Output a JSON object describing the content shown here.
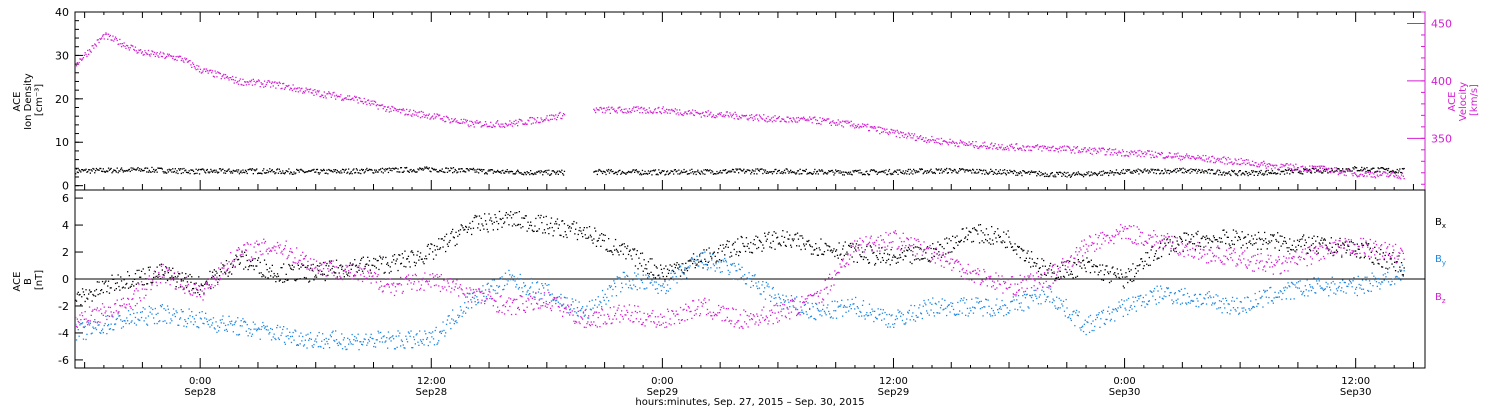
{
  "colors": {
    "black": "#000000",
    "magenta": "#d21fd2",
    "blue": "#1f87e0"
  },
  "x_axis": {
    "label": "hours:minutes, Sep. 27, 2015 – Sep. 30, 2015",
    "range_hours": [
      -6.5,
      63.6
    ],
    "ticks": [
      {
        "hour": 0,
        "time": "0:00",
        "date": "Sep28"
      },
      {
        "hour": 12,
        "time": "12:00",
        "date": "Sep28"
      },
      {
        "hour": 24,
        "time": "0:00",
        "date": "Sep29"
      },
      {
        "hour": 36,
        "time": "12:00",
        "date": "Sep29"
      },
      {
        "hour": 48,
        "time": "0:00",
        "date": "Sep30"
      },
      {
        "hour": 60,
        "time": "12:00",
        "date": "Sep30"
      }
    ]
  },
  "chart_data": [
    {
      "type": "scatter",
      "title": "",
      "ylabel_lines": [
        "ACE",
        "Ion Density",
        "[cm⁻³]"
      ],
      "ylim": [
        -1,
        40
      ],
      "yticks": [
        0,
        10,
        20,
        30,
        40
      ],
      "y2label_lines": [
        "ACE",
        "Velocity",
        "[km/s]"
      ],
      "y2lim": [
        305,
        460
      ],
      "y2ticks": [
        350,
        400,
        450
      ],
      "series": [
        {
          "color_key": "black",
          "axis": "left",
          "x": [
            -6.5,
            -3,
            0,
            3,
            6,
            9,
            12,
            15,
            18,
            21,
            24,
            27,
            30,
            33,
            36,
            39,
            42,
            45,
            48,
            51,
            54,
            57,
            60,
            62.5
          ],
          "values": [
            3.5,
            3.8,
            3.4,
            3.5,
            3.3,
            3.6,
            3.9,
            3.4,
            3.1,
            3.3,
            3.2,
            3.4,
            3.5,
            3.2,
            3.3,
            3.6,
            3.2,
            2.6,
            3.3,
            3.6,
            3.0,
            3.4,
            4.0,
            3.5
          ]
        },
        {
          "color_key": "magenta",
          "axis": "right",
          "x": [
            -6.5,
            -5,
            -3,
            -1,
            0,
            2,
            4,
            6,
            8,
            10,
            12,
            14,
            16,
            18,
            20,
            22,
            24,
            26,
            28,
            30,
            32,
            34,
            36,
            38,
            40,
            42,
            44,
            46,
            48,
            50,
            52,
            54,
            56,
            58,
            60,
            62.5
          ],
          "values": [
            415,
            440,
            425,
            420,
            410,
            400,
            397,
            390,
            385,
            375,
            370,
            363,
            363,
            368,
            375,
            375,
            375,
            372,
            370,
            367,
            366,
            362,
            355,
            349,
            345,
            343,
            342,
            340,
            338,
            336,
            333,
            330,
            326,
            324,
            320,
            318
          ]
        }
      ]
    },
    {
      "type": "scatter",
      "title": "",
      "ylabel_lines": [
        "ACE",
        "B",
        "[nT]"
      ],
      "ylim": [
        -6.6,
        6.6
      ],
      "yticks": [
        -6,
        -4,
        -2,
        0,
        2,
        4,
        6
      ],
      "legend": [
        {
          "base": "B",
          "sub": "x",
          "color_key": "black"
        },
        {
          "base": "B",
          "sub": "y",
          "color_key": "blue"
        },
        {
          "base": "B",
          "sub": "z",
          "color_key": "magenta"
        }
      ],
      "series": [
        {
          "color_key": "black",
          "x": [
            -6.5,
            -4,
            -2,
            0,
            2,
            4,
            6,
            8,
            10,
            12,
            14,
            16,
            18,
            20,
            22,
            24,
            26,
            28,
            30,
            32,
            34,
            36,
            38,
            40,
            42,
            44,
            46,
            48,
            50,
            52,
            54,
            56,
            58,
            60,
            62.5
          ],
          "values": [
            -1.5,
            0,
            0.5,
            -0.5,
            1.5,
            0.5,
            0.5,
            1,
            1.2,
            2,
            4,
            4.5,
            4,
            3.5,
            2,
            0.5,
            1.5,
            2.5,
            3,
            2.5,
            2,
            1.5,
            2,
            3.5,
            3,
            0.5,
            1,
            0,
            2.5,
            3,
            3,
            2.8,
            2.5,
            2.3,
            1.0
          ]
        },
        {
          "color_key": "blue",
          "x": [
            -6.5,
            -4,
            -2,
            0,
            2,
            4,
            6,
            8,
            10,
            12,
            14,
            16,
            18,
            20,
            22,
            24,
            26,
            28,
            30,
            32,
            34,
            36,
            38,
            40,
            42,
            44,
            46,
            48,
            50,
            52,
            54,
            56,
            58,
            60,
            62.5
          ],
          "values": [
            -4,
            -3,
            -2.5,
            -3,
            -3.5,
            -4,
            -4.5,
            -4.5,
            -4.5,
            -4.5,
            -1.5,
            0,
            -1,
            -2.5,
            0,
            -0.5,
            1.5,
            0.5,
            -1.5,
            -2.5,
            -2,
            -3,
            -2,
            -2,
            -2,
            -1,
            -3.5,
            -2,
            -1,
            -1.5,
            -2,
            -1,
            -0.5,
            -0.5,
            0.5
          ]
        },
        {
          "color_key": "magenta",
          "x": [
            -6.5,
            -4,
            -2,
            0,
            2,
            4,
            6,
            8,
            10,
            12,
            14,
            16,
            18,
            20,
            22,
            24,
            26,
            28,
            30,
            32,
            34,
            36,
            38,
            40,
            42,
            44,
            46,
            48,
            50,
            52,
            54,
            56,
            58,
            60,
            62.5
          ],
          "values": [
            -3,
            -2,
            0.5,
            -1,
            2,
            2.5,
            1,
            0.5,
            -0.5,
            0,
            -1,
            -2,
            -1.5,
            -3,
            -2.5,
            -3,
            -2,
            -3,
            -2.5,
            -1.5,
            2.5,
            3,
            2,
            0.5,
            -0.5,
            0,
            2.5,
            3.5,
            2.8,
            2,
            1.5,
            1,
            2,
            2.5,
            1.8
          ]
        }
      ]
    }
  ]
}
